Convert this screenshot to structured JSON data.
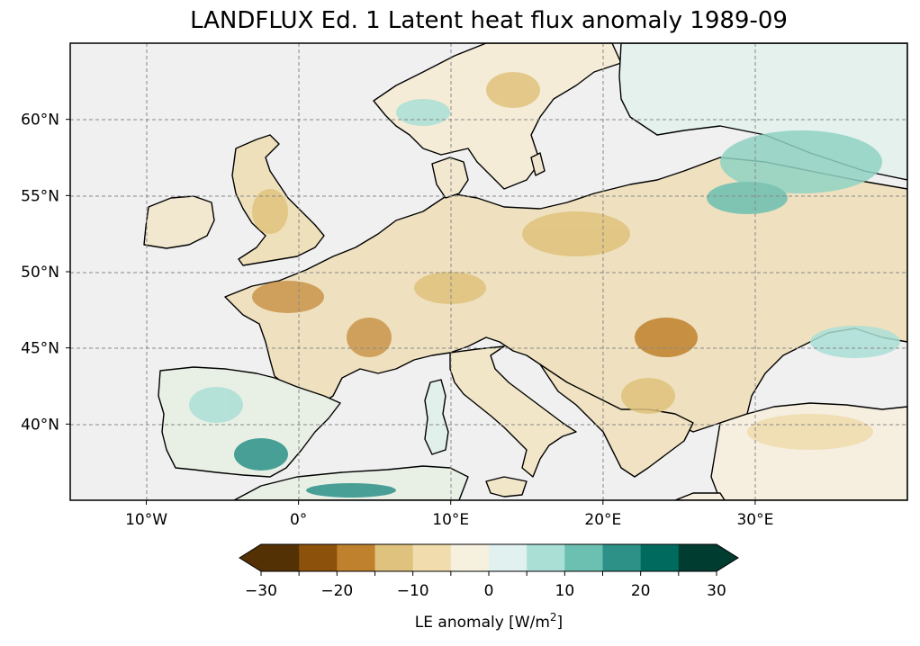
{
  "title": "LANDFLUX Ed. 1 Latent heat flux anomaly 1989-09",
  "map": {
    "lon_range": [
      -15,
      40
    ],
    "lat_range": [
      35,
      65
    ],
    "lon_ticks": [
      {
        "value": -10,
        "label": "10°W"
      },
      {
        "value": 0,
        "label": "0°"
      },
      {
        "value": 10,
        "label": "10°E"
      },
      {
        "value": 20,
        "label": "20°E"
      },
      {
        "value": 30,
        "label": "30°E"
      }
    ],
    "lat_ticks": [
      {
        "value": 40,
        "label": "40°N"
      },
      {
        "value": 45,
        "label": "45°N"
      },
      {
        "value": 50,
        "label": "50°N"
      },
      {
        "value": 55,
        "label": "55°N"
      },
      {
        "value": 60,
        "label": "60°N"
      }
    ],
    "gridlines": true,
    "ocean_color": "#f0f0f0",
    "coastline_color": "#000000"
  },
  "colorbar": {
    "label_prefix": "LE anomaly [W/m",
    "label_sup": "2",
    "label_suffix": "]",
    "colormap": "BrBG",
    "extend": "both",
    "ticks": [
      {
        "value": -30,
        "label": "−30"
      },
      {
        "value": -20,
        "label": "−20"
      },
      {
        "value": -10,
        "label": "−10"
      },
      {
        "value": 0,
        "label": "0"
      },
      {
        "value": 10,
        "label": "10"
      },
      {
        "value": 20,
        "label": "20"
      },
      {
        "value": 30,
        "label": "30"
      }
    ],
    "levels": [
      -30,
      -25,
      -20,
      -15,
      -10,
      -5,
      0,
      5,
      10,
      15,
      20,
      25,
      30
    ],
    "colors": [
      "#543005",
      "#8c510a",
      "#bf812d",
      "#dfc27d",
      "#f0dcad",
      "#f6f0de",
      "#e0f1ef",
      "#aadfd6",
      "#6cc0b1",
      "#2d9187",
      "#016a5f",
      "#003c30"
    ],
    "under_color": "#543005",
    "over_color": "#003c30"
  }
}
